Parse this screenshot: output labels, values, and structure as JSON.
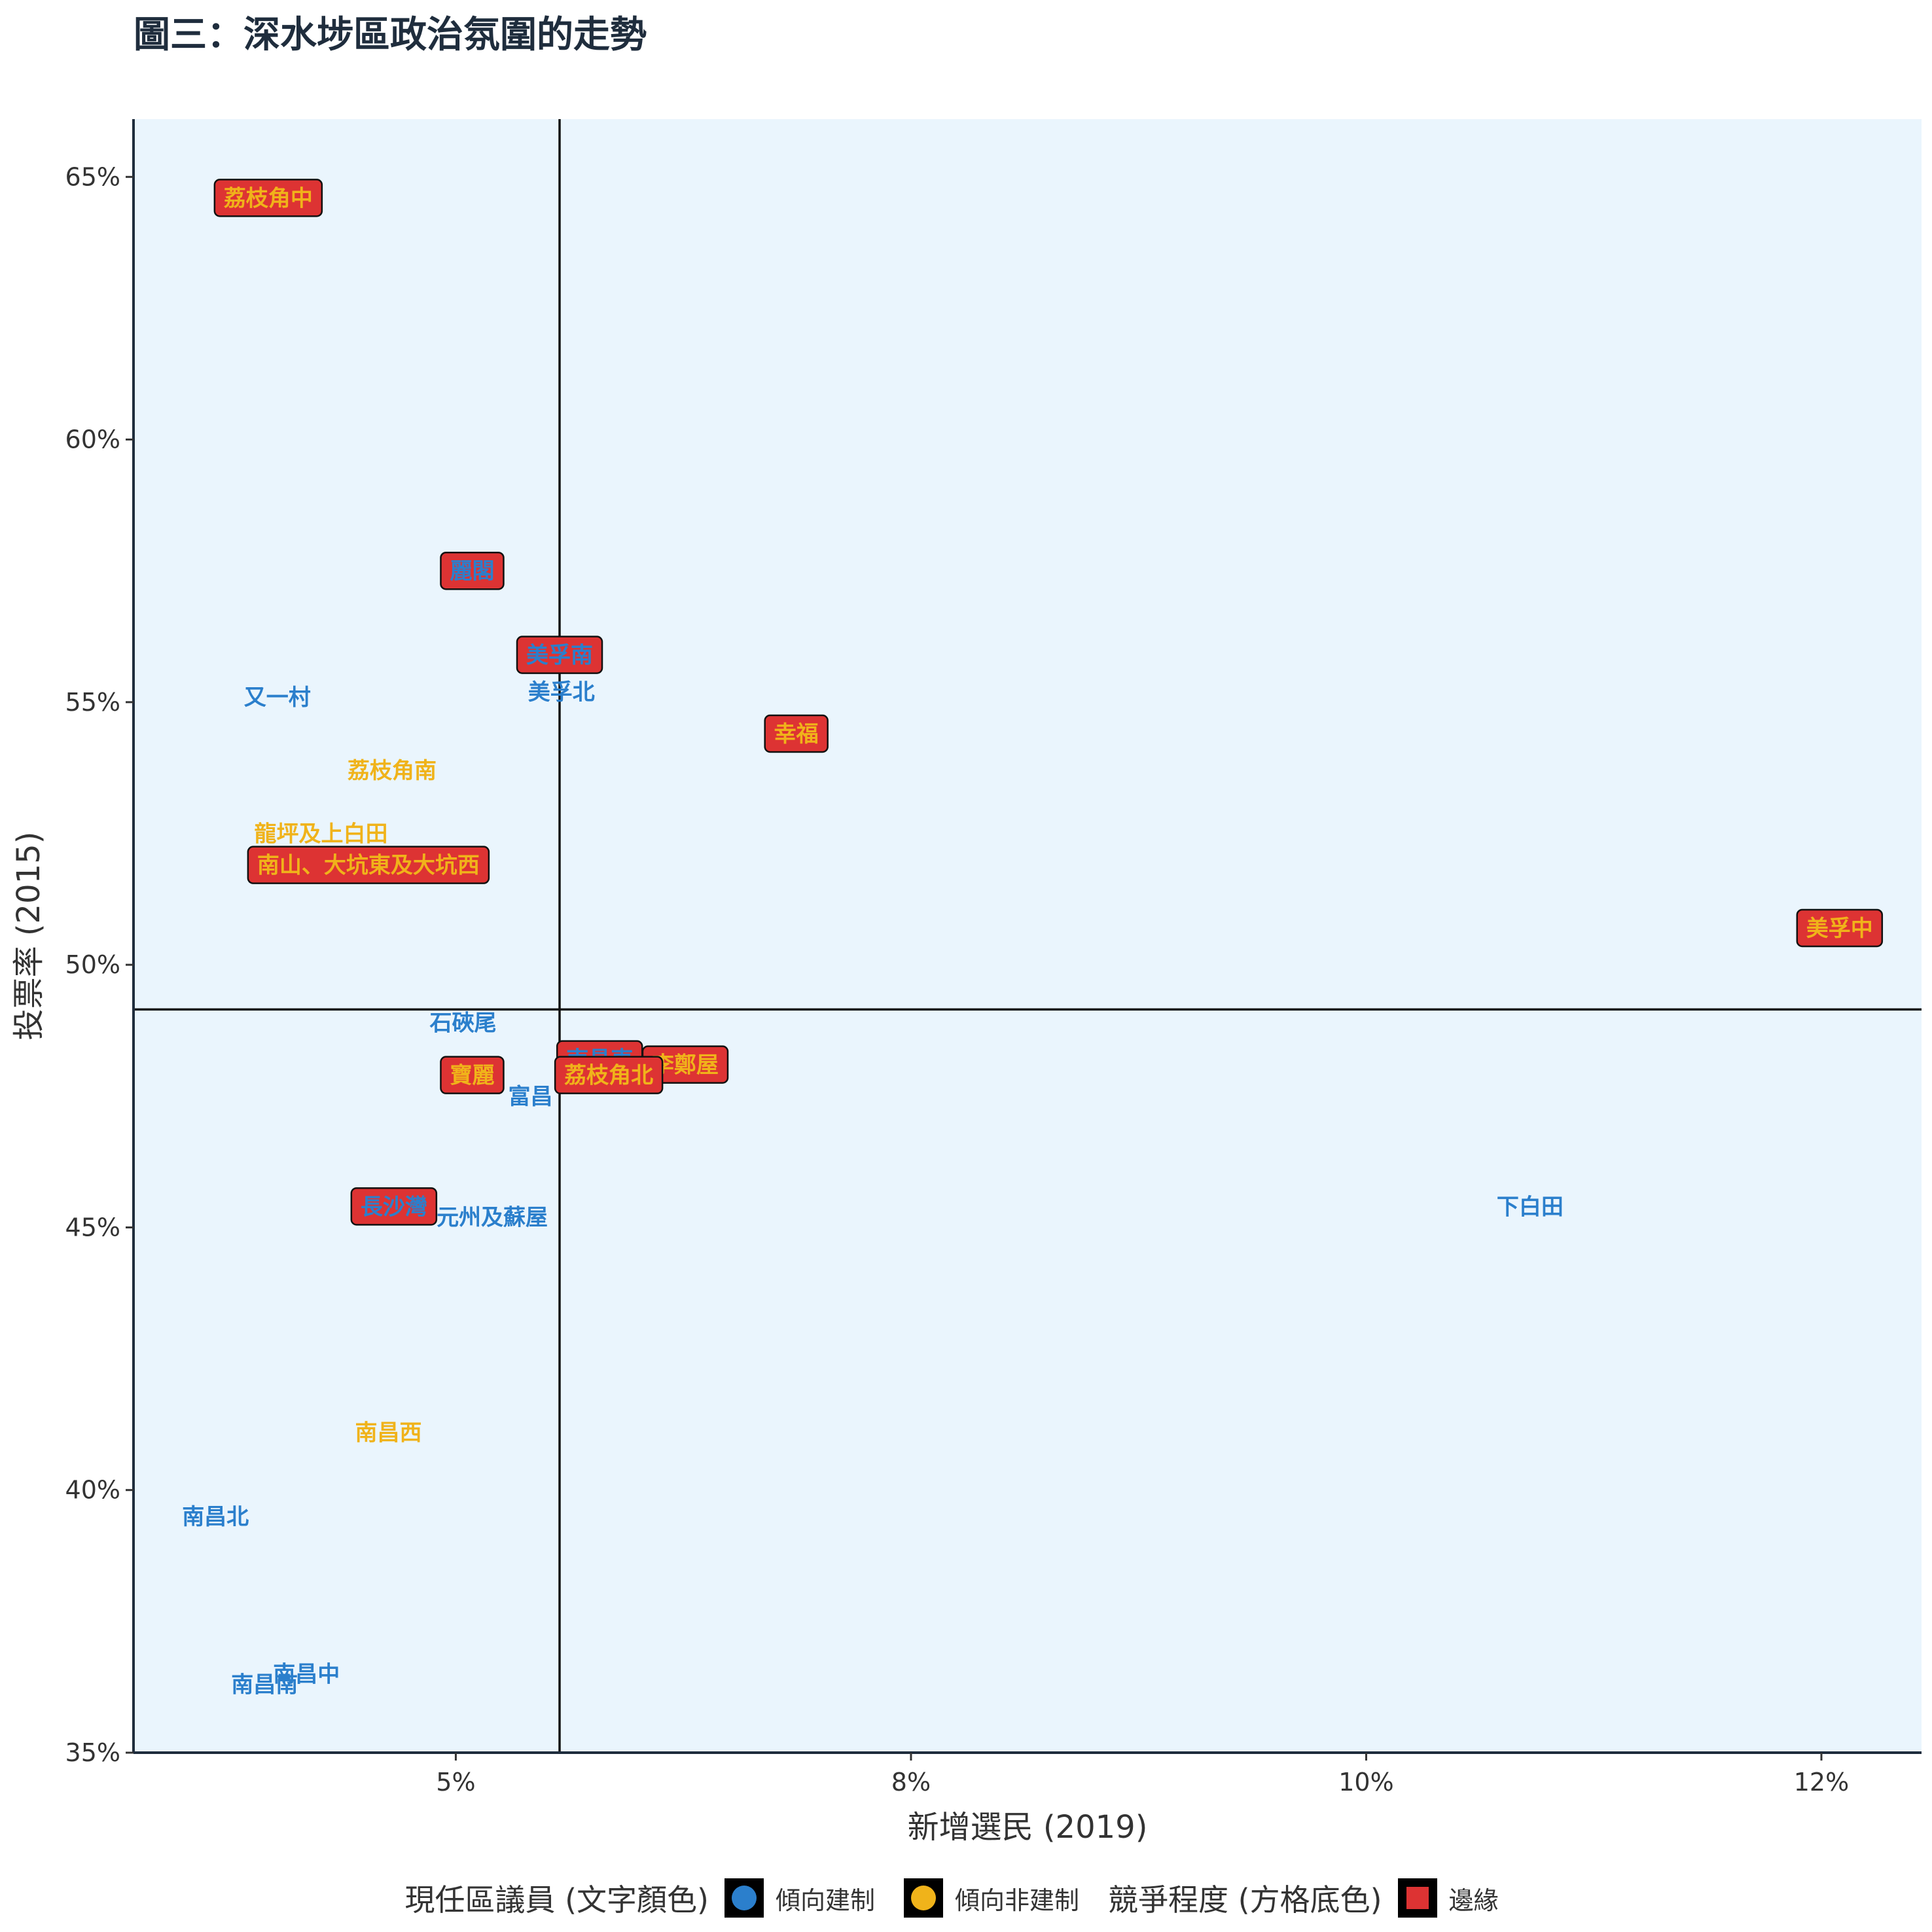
{
  "chart_data": {
    "type": "scatter",
    "title": "圖三：深水埗區政治氛圍的走勢",
    "xlabel": "新增選民 (2019)",
    "ylabel": "投票率 (2015)",
    "xlim": [
      3.23,
      13.05
    ],
    "ylim": [
      35.0,
      66.1
    ],
    "x_ticks": [
      5,
      7.5,
      10,
      12.5
    ],
    "x_tick_labels": [
      "5%",
      "8%",
      "10%",
      "12%"
    ],
    "y_ticks": [
      35,
      40,
      45,
      50,
      55,
      60,
      65
    ],
    "y_tick_labels": [
      "35%",
      "40%",
      "45%",
      "50%",
      "55%",
      "60%",
      "65%"
    ],
    "reference_lines": {
      "x": 5.57,
      "y": 49.15
    },
    "panel_background": "#eaf5fd",
    "colors": {
      "pro_establishment": "#2b7fcc",
      "non_establishment": "#f0b31a",
      "marginal_box": "#dd3333"
    },
    "points": [
      {
        "label": "荔枝角中",
        "x": 3.97,
        "y": 64.6,
        "camp": "non_establishment",
        "marginal": true
      },
      {
        "label": "麗閣",
        "x": 5.09,
        "y": 57.5,
        "camp": "pro_establishment",
        "marginal": true
      },
      {
        "label": "美孚南",
        "x": 5.57,
        "y": 55.9,
        "camp": "pro_establishment",
        "marginal": true
      },
      {
        "label": "又一村",
        "x": 4.02,
        "y": 55.1,
        "camp": "pro_establishment",
        "marginal": false
      },
      {
        "label": "美孚北",
        "x": 5.58,
        "y": 55.2,
        "camp": "pro_establishment",
        "marginal": false
      },
      {
        "label": "幸福",
        "x": 6.87,
        "y": 54.4,
        "camp": "non_establishment",
        "marginal": true
      },
      {
        "label": "荔枝角南",
        "x": 4.65,
        "y": 53.7,
        "camp": "non_establishment",
        "marginal": false
      },
      {
        "label": "龍坪及上白田",
        "x": 4.26,
        "y": 52.5,
        "camp": "non_establishment",
        "marginal": false
      },
      {
        "label": "南山、大坑東及大坑西",
        "x": 4.52,
        "y": 51.9,
        "camp": "non_establishment",
        "marginal": true
      },
      {
        "label": "美孚中",
        "x": 12.6,
        "y": 50.7,
        "camp": "non_establishment",
        "marginal": true
      },
      {
        "label": "石硤尾",
        "x": 5.04,
        "y": 48.9,
        "camp": "pro_establishment",
        "marginal": false
      },
      {
        "label": "南昌東",
        "x": 5.79,
        "y": 48.2,
        "camp": "pro_establishment",
        "marginal": true
      },
      {
        "label": "李鄭屋",
        "x": 6.26,
        "y": 48.1,
        "camp": "non_establishment",
        "marginal": true
      },
      {
        "label": "荔枝角北",
        "x": 5.84,
        "y": 47.9,
        "camp": "non_establishment",
        "marginal": true
      },
      {
        "label": "寶麗",
        "x": 5.09,
        "y": 47.9,
        "camp": "non_establishment",
        "marginal": true
      },
      {
        "label": "富昌",
        "x": 5.41,
        "y": 47.5,
        "camp": "pro_establishment",
        "marginal": false
      },
      {
        "label": "長沙灣",
        "x": 4.66,
        "y": 45.4,
        "camp": "pro_establishment",
        "marginal": true
      },
      {
        "label": "元州及蘇屋",
        "x": 5.2,
        "y": 45.2,
        "camp": "pro_establishment",
        "marginal": false
      },
      {
        "label": "下白田",
        "x": 10.9,
        "y": 45.4,
        "camp": "pro_establishment",
        "marginal": false
      },
      {
        "label": "南昌西",
        "x": 4.63,
        "y": 41.1,
        "camp": "non_establishment",
        "marginal": false
      },
      {
        "label": "南昌北",
        "x": 3.68,
        "y": 39.5,
        "camp": "pro_establishment",
        "marginal": false
      },
      {
        "label": "南昌中",
        "x": 4.18,
        "y": 36.5,
        "camp": "pro_establishment",
        "marginal": false
      },
      {
        "label": "南昌南",
        "x": 3.95,
        "y": 36.3,
        "camp": "pro_establishment",
        "marginal": false
      }
    ]
  },
  "legend": {
    "incumbent_title": "現任區議員 (文字顏色)",
    "incumbent_items": [
      {
        "label": "傾向建制",
        "color": "#2b7fcc"
      },
      {
        "label": "傾向非建制",
        "color": "#f0b31a"
      }
    ],
    "competition_title": "競爭程度 (方格底色)",
    "competition_items": [
      {
        "label": "邊緣",
        "color": "#dd3333"
      }
    ]
  }
}
